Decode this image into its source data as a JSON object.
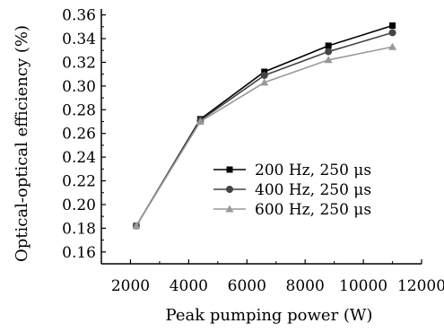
{
  "chart_data": {
    "type": "line",
    "title": "",
    "xlabel": "Peak pumping power (W)",
    "ylabel": "Optical-optical efficiency (%)",
    "xlim": [
      1000,
      12000
    ],
    "ylim": [
      0.15,
      0.365
    ],
    "xticks": [
      2000,
      4000,
      6000,
      8000,
      10000,
      12000
    ],
    "yticks": [
      0.16,
      0.18,
      0.2,
      0.22,
      0.24,
      0.26,
      0.28,
      0.3,
      0.32,
      0.34,
      0.36
    ],
    "grid": false,
    "legend_position": "center-right",
    "x": [
      2200,
      4400,
      6600,
      8800,
      11000
    ],
    "series": [
      {
        "name": "200 Hz, 250 μs",
        "marker": "square",
        "color": "#000000",
        "values": [
          0.182,
          0.272,
          0.312,
          0.334,
          0.351
        ]
      },
      {
        "name": "400 Hz, 250 μs",
        "marker": "circle",
        "color": "#444444",
        "values": [
          0.182,
          0.271,
          0.309,
          0.329,
          0.345
        ]
      },
      {
        "name": "600 Hz, 250 μs",
        "marker": "triangle",
        "color": "#999999",
        "values": [
          0.182,
          0.27,
          0.303,
          0.322,
          0.333
        ]
      }
    ]
  }
}
